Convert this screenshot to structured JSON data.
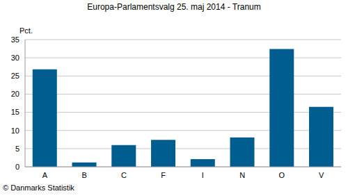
{
  "chart_data": {
    "type": "bar",
    "title": "Europa-Parlamentsvalg 25. maj 2014 - Tranum",
    "ylabel": "Pct.",
    "source": "© Danmarks Statistik",
    "categories": [
      "A",
      "B",
      "C",
      "F",
      "I",
      "N",
      "O",
      "V"
    ],
    "values": [
      26.8,
      1.2,
      6.0,
      7.4,
      2.1,
      8.1,
      32.4,
      16.5
    ],
    "color": "#005d8f",
    "ylim": [
      0,
      35
    ],
    "yticks": [
      0,
      5,
      10,
      15,
      20,
      25,
      30,
      35
    ],
    "grid": true
  }
}
